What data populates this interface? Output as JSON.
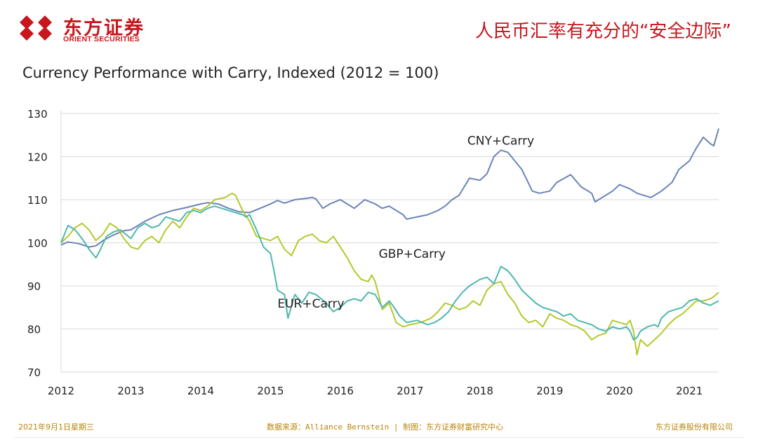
{
  "header": {
    "logo_cn": "东方证券",
    "logo_en": "ORIENT SECURITIES",
    "slide_title": "人民币汇率有充分的“安全边际”",
    "brand_color": "#c8161d"
  },
  "footer": {
    "date": "2021年9月1日星期三",
    "source": "数据来源：Alliance Bernstein | 制图：东方证券财富研究中心",
    "company": "东方证券股份有限公司",
    "color": "#b8860b"
  },
  "chart_data": {
    "type": "line",
    "title": "Currency Performance with Carry, Indexed (2012 = 100)",
    "xlabel": "",
    "ylabel": "",
    "xlim": [
      2012,
      2021.42
    ],
    "ylim": [
      70,
      130
    ],
    "y_ticks": [
      70,
      80,
      90,
      100,
      110,
      120,
      130
    ],
    "x_ticks": [
      2012,
      2013,
      2014,
      2015,
      2016,
      2017,
      2018,
      2019,
      2020,
      2021
    ],
    "x_tick_labels": [
      "2012",
      "2013",
      "2014",
      "2015",
      "2016",
      "2017",
      "2018",
      "2019",
      "2020",
      "2021"
    ],
    "grid": "horizontal",
    "legend": "inline labels",
    "series": [
      {
        "name": "CNY+Carry",
        "color": "#6b84b8",
        "x": [
          2012.0,
          2012.1,
          2012.25,
          2012.4,
          2012.5,
          2012.6,
          2012.75,
          2012.9,
          2013.0,
          2013.2,
          2013.4,
          2013.6,
          2013.8,
          2014.0,
          2014.1,
          2014.25,
          2014.4,
          2014.55,
          2014.7,
          2014.85,
          2015.0,
          2015.1,
          2015.2,
          2015.35,
          2015.5,
          2015.6,
          2015.65,
          2015.75,
          2015.85,
          2016.0,
          2016.1,
          2016.2,
          2016.35,
          2016.5,
          2016.6,
          2016.7,
          2016.8,
          2016.9,
          2016.95,
          2017.1,
          2017.25,
          2017.4,
          2017.5,
          2017.6,
          2017.7,
          2017.85,
          2018.0,
          2018.1,
          2018.2,
          2018.3,
          2018.4,
          2018.5,
          2018.6,
          2018.75,
          2018.85,
          2019.0,
          2019.1,
          2019.3,
          2019.45,
          2019.6,
          2019.65,
          2019.75,
          2019.9,
          2020.0,
          2020.15,
          2020.25,
          2020.35,
          2020.45,
          2020.6,
          2020.75,
          2020.85,
          2021.0,
          2021.1,
          2021.2,
          2021.3,
          2021.35,
          2021.42
        ],
        "values": [
          99.5,
          100.2,
          99.8,
          99.0,
          99.3,
          100.5,
          101.8,
          102.8,
          103.0,
          105.0,
          106.5,
          107.5,
          108.2,
          109.0,
          109.3,
          109.0,
          108.0,
          107.2,
          107.0,
          108.0,
          109.0,
          109.8,
          109.2,
          110.0,
          110.3,
          110.5,
          110.2,
          108.0,
          109.0,
          110.0,
          109.0,
          108.0,
          110.0,
          109.0,
          108.0,
          108.5,
          107.5,
          106.5,
          105.5,
          106.0,
          106.5,
          107.5,
          108.5,
          110.0,
          111.0,
          115.0,
          114.5,
          116.0,
          120.0,
          121.5,
          121.0,
          119.0,
          117.0,
          112.0,
          111.5,
          112.0,
          114.0,
          115.8,
          113.0,
          111.5,
          109.5,
          110.5,
          112.0,
          113.5,
          112.5,
          111.5,
          111.0,
          110.5,
          112.0,
          114.0,
          117.0,
          119.0,
          122.0,
          124.5,
          123.0,
          122.5,
          126.5
        ]
      },
      {
        "name": "GBP+Carry",
        "color": "#b5c82c",
        "x": [
          2012.0,
          2012.1,
          2012.2,
          2012.3,
          2012.4,
          2012.5,
          2012.6,
          2012.7,
          2012.8,
          2012.9,
          2013.0,
          2013.1,
          2013.2,
          2013.3,
          2013.4,
          2013.5,
          2013.6,
          2013.7,
          2013.8,
          2013.9,
          2014.0,
          2014.1,
          2014.2,
          2014.35,
          2014.45,
          2014.5,
          2014.6,
          2014.7,
          2014.8,
          2014.9,
          2015.0,
          2015.1,
          2015.2,
          2015.3,
          2015.4,
          2015.5,
          2015.6,
          2015.7,
          2015.8,
          2015.9,
          2016.0,
          2016.1,
          2016.2,
          2016.3,
          2016.4,
          2016.45,
          2016.5,
          2016.6,
          2016.7,
          2016.8,
          2016.9,
          2017.0,
          2017.15,
          2017.3,
          2017.4,
          2017.5,
          2017.6,
          2017.7,
          2017.8,
          2017.9,
          2018.0,
          2018.1,
          2018.2,
          2018.3,
          2018.4,
          2018.5,
          2018.6,
          2018.7,
          2018.8,
          2018.9,
          2019.0,
          2019.1,
          2019.2,
          2019.3,
          2019.4,
          2019.5,
          2019.6,
          2019.7,
          2019.8,
          2019.9,
          2020.0,
          2020.1,
          2020.15,
          2020.2,
          2020.25,
          2020.3,
          2020.4,
          2020.5,
          2020.6,
          2020.7,
          2020.8,
          2020.9,
          2021.0,
          2021.1,
          2021.2,
          2021.3,
          2021.35,
          2021.42
        ],
        "values": [
          100.0,
          101.5,
          103.5,
          104.5,
          103.0,
          100.5,
          102.0,
          104.5,
          103.5,
          101.0,
          99.0,
          98.5,
          100.5,
          101.5,
          100.0,
          103.0,
          105.0,
          103.5,
          106.0,
          108.0,
          107.5,
          108.5,
          110.0,
          110.5,
          111.5,
          111.0,
          107.5,
          105.0,
          101.5,
          101.0,
          100.5,
          101.5,
          98.5,
          97.0,
          100.5,
          101.5,
          102.0,
          100.5,
          100.0,
          101.5,
          99.0,
          96.5,
          93.5,
          91.5,
          91.0,
          92.5,
          91.0,
          84.5,
          86.0,
          81.5,
          80.5,
          81.0,
          81.5,
          82.5,
          84.0,
          86.0,
          85.5,
          84.5,
          85.0,
          86.5,
          85.5,
          89.0,
          90.5,
          91.0,
          88.0,
          86.0,
          83.0,
          81.5,
          82.0,
          80.5,
          83.5,
          82.5,
          82.0,
          81.0,
          80.5,
          79.5,
          77.5,
          78.5,
          79.0,
          82.0,
          81.5,
          81.0,
          82.0,
          79.5,
          74.0,
          77.5,
          76.0,
          77.5,
          79.0,
          81.0,
          82.5,
          83.5,
          85.0,
          86.5,
          86.5,
          87.0,
          87.5,
          88.5
        ]
      },
      {
        "name": "EUR+Carry",
        "color": "#4db8ad",
        "x": [
          2012.0,
          2012.1,
          2012.2,
          2012.3,
          2012.4,
          2012.5,
          2012.55,
          2012.65,
          2012.75,
          2012.85,
          2013.0,
          2013.1,
          2013.2,
          2013.3,
          2013.4,
          2013.5,
          2013.6,
          2013.7,
          2013.8,
          2013.9,
          2014.0,
          2014.1,
          2014.2,
          2014.3,
          2014.4,
          2014.5,
          2014.6,
          2014.65,
          2014.7,
          2014.8,
          2014.9,
          2015.0,
          2015.05,
          2015.1,
          2015.2,
          2015.25,
          2015.35,
          2015.45,
          2015.55,
          2015.65,
          2015.8,
          2015.9,
          2016.0,
          2016.1,
          2016.2,
          2016.3,
          2016.4,
          2016.5,
          2016.6,
          2016.7,
          2016.75,
          2016.85,
          2016.95,
          2017.1,
          2017.25,
          2017.35,
          2017.45,
          2017.55,
          2017.65,
          2017.75,
          2017.85,
          2018.0,
          2018.1,
          2018.2,
          2018.3,
          2018.4,
          2018.5,
          2018.6,
          2018.7,
          2018.8,
          2018.9,
          2019.0,
          2019.1,
          2019.2,
          2019.3,
          2019.4,
          2019.5,
          2019.6,
          2019.7,
          2019.8,
          2019.9,
          2020.0,
          2020.1,
          2020.15,
          2020.2,
          2020.25,
          2020.3,
          2020.4,
          2020.5,
          2020.55,
          2020.6,
          2020.7,
          2020.8,
          2020.9,
          2021.0,
          2021.1,
          2021.2,
          2021.3,
          2021.42
        ],
        "values": [
          100.0,
          104.0,
          103.0,
          101.0,
          98.5,
          96.5,
          98.0,
          101.5,
          102.5,
          103.0,
          101.0,
          103.5,
          104.5,
          103.5,
          104.0,
          106.0,
          105.5,
          105.0,
          107.0,
          107.5,
          107.0,
          108.0,
          108.5,
          108.0,
          107.5,
          107.0,
          106.5,
          106.0,
          106.5,
          103.0,
          99.0,
          97.5,
          93.5,
          89.0,
          88.0,
          82.5,
          88.0,
          86.0,
          88.5,
          88.0,
          86.0,
          84.0,
          85.0,
          86.5,
          87.0,
          86.5,
          88.5,
          88.0,
          85.0,
          86.5,
          85.5,
          83.0,
          81.5,
          82.0,
          81.0,
          81.5,
          82.5,
          84.0,
          86.5,
          88.5,
          90.0,
          91.5,
          92.0,
          90.5,
          94.5,
          93.5,
          91.5,
          89.0,
          87.5,
          86.0,
          85.0,
          84.5,
          84.0,
          83.0,
          83.5,
          82.0,
          81.5,
          81.0,
          80.0,
          79.5,
          80.5,
          80.0,
          80.5,
          79.5,
          77.5,
          78.0,
          79.5,
          80.5,
          81.0,
          80.5,
          82.5,
          84.0,
          84.5,
          85.0,
          86.5,
          87.0,
          86.0,
          85.5,
          86.5
        ]
      }
    ],
    "annotations": [
      {
        "text": "CNY+Carry",
        "x": 2017.82,
        "y": 122.8
      },
      {
        "text": "GBP+Carry",
        "x": 2016.55,
        "y": 96.5
      },
      {
        "text": "EUR+Carry",
        "x": 2015.1,
        "y": 85.0
      }
    ]
  }
}
